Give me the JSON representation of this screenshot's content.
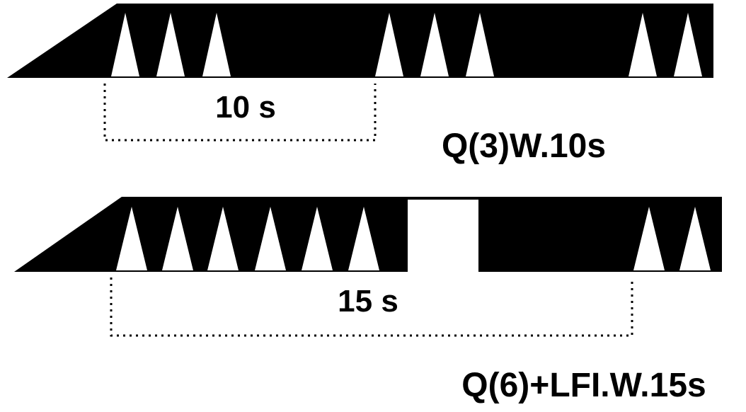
{
  "protocols": [
    {
      "id": "q3",
      "pulses": 8,
      "pauses": [],
      "interval_label": "10 s",
      "protocol_label": "Q(3)W.10s"
    },
    {
      "id": "q6",
      "pulses": 8,
      "pauses": [
        "LFI"
      ],
      "interval_label": "15 s",
      "protocol_label": "Q(6)+LFI.W.15s"
    }
  ],
  "colors": {
    "background": "#ffffff",
    "train": "#000000",
    "pulse": "#ffffff"
  }
}
